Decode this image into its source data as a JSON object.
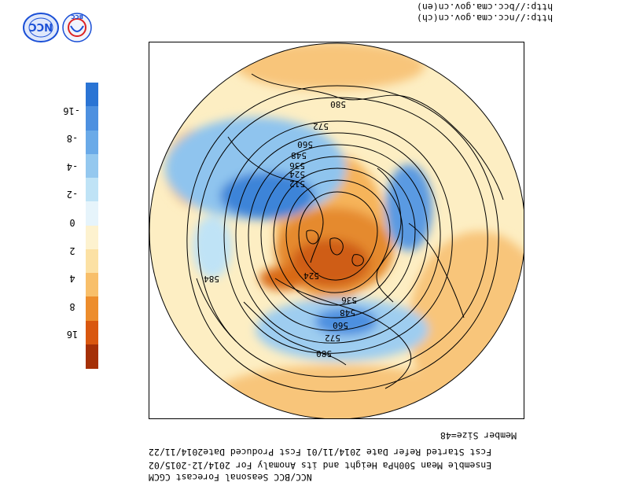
{
  "header": {
    "urls": [
      "http://bcc.cma.gov.cn(en)",
      "http://ncc.cma.gov.cn(ch)"
    ]
  },
  "logos": [
    {
      "name": "ncc-logo",
      "text": "NCC",
      "color": "#1a4fd6"
    },
    {
      "name": "bcc-logo",
      "text": "BCC",
      "color": "#1a4fd6"
    }
  ],
  "footer": {
    "lines": [
      "NCC/BCC Seasonal Forecast                                   CGCM",
      "Ensemble Mean 500hPa Height and its Anomaly  For 2014/12-2015/02",
      "Fcst Started Refer Date 2014/11/01    Fcst Produced Date2014/11/22",
      "Member Size=48"
    ]
  },
  "colorbar": {
    "levels": [
      {
        "color": "#2a74d4"
      },
      {
        "color": "#4d90e0"
      },
      {
        "color": "#6aaae8"
      },
      {
        "color": "#94c8ef"
      },
      {
        "color": "#bfe3f6"
      },
      {
        "color": "#e6f4fb"
      },
      {
        "color": "#fdf2cf"
      },
      {
        "color": "#fce1a4"
      },
      {
        "color": "#f8bf6a"
      },
      {
        "color": "#ed8d2c"
      },
      {
        "color": "#d9570f"
      },
      {
        "color": "#a53007"
      }
    ],
    "tick_labels": [
      "-16",
      "-8",
      "-4",
      "-2",
      "0",
      "2",
      "4",
      "8",
      "16"
    ]
  },
  "map": {
    "projection": "north polar stereographic (rotated 180°)",
    "contour_labels": [
      "580",
      "572",
      "560",
      "548",
      "536",
      "524",
      "512",
      "584",
      "524",
      "536",
      "548",
      "560",
      "572",
      "580"
    ],
    "fill_colors": {
      "ocean_base": "#fdeec3",
      "warm": "#f5b45e",
      "hot": "#d96a19",
      "cool": "#9ecdf0",
      "cold": "#3d84d8"
    }
  }
}
